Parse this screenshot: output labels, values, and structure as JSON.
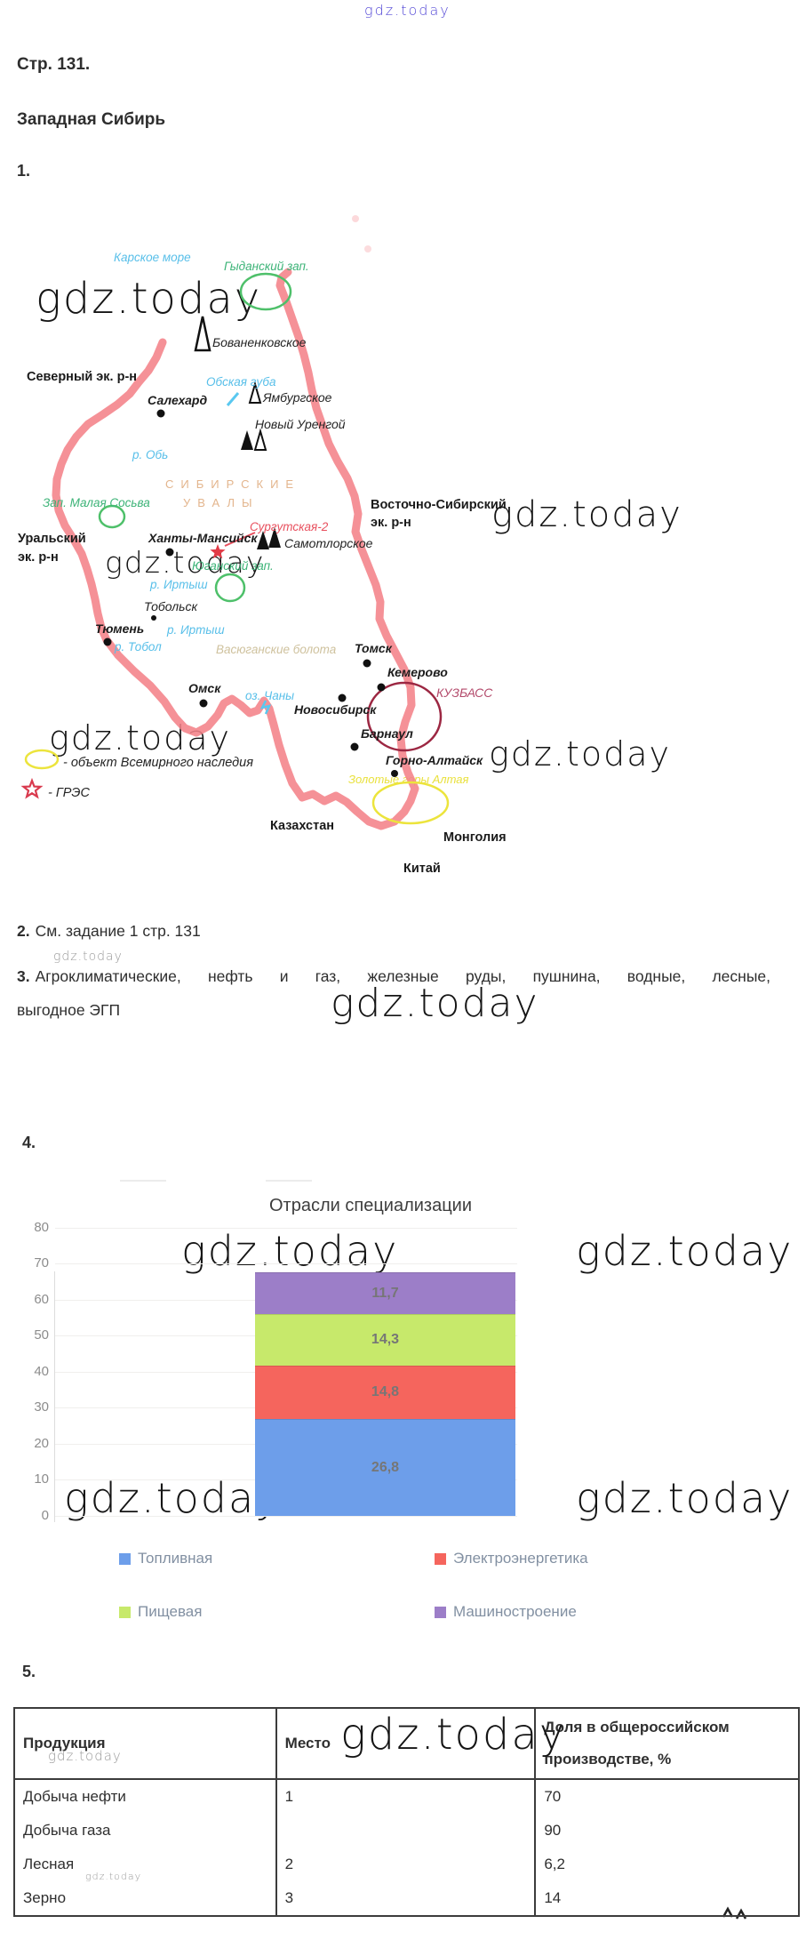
{
  "watermark": {
    "text": "gdz.today"
  },
  "page": {
    "heading": "Стр. 131.",
    "subheading": "Западная Сибирь"
  },
  "sections": {
    "s1": "1.",
    "s2": "2.",
    "s3": "3.",
    "s4": "4.",
    "s5": "5."
  },
  "answers": {
    "a2": "См. задание 1 стр. 131",
    "a3_line1": "Агроклиматические, нефть и газ, железные руды, пушнина, водные, лесные,",
    "a3_line2": "выгодное ЭГП"
  },
  "map": {
    "sea": "Карское море",
    "gydansky": "Гыданский зап.",
    "bovanenkovskoe": "Бованенковское",
    "severny": "Северный эк. р-н",
    "obskaya": "Обская губа",
    "salekhard": "Салехард",
    "yamburgskoe": "Ямбургское",
    "novy_urengoy": "Новый Уренгой",
    "r_ob": "р. Обь",
    "sibirskie": "СИБИРСКИЕ",
    "uvaly": "УВАЛЫ",
    "malaya_sosva": "Зап. Малая Сосьва",
    "vostochno_1": "Восточно-Сибирский",
    "vostochno_2": "эк. р-н",
    "uralsky_1": "Уральский",
    "uralsky_2": "эк. р-н",
    "khanty": "Ханты-Мансийск",
    "surgutskaya": "Сургутская-2",
    "samotlorskoe": "Самотлорское",
    "yugansky": "Юганский зап.",
    "irtysh1": "р. Иртыш",
    "tobolsk": "Тобольск",
    "tyumen": "Тюмень",
    "irtysh2": "р. Иртыш",
    "tobol": "р. Тобол",
    "vasyugan": "Васюганские болота",
    "tomsk": "Томск",
    "omsk": "Омск",
    "chany": "оз. Чаны",
    "kemerovo": "Кемерово",
    "kuzbass": "КУЗБАСС",
    "novosibirsk": "Новосибирск",
    "barnaul": "Барнаул",
    "gorno": "Горно-Алтайск",
    "altai_gold": "Золотые горы Алтая",
    "kazakhstan": "Казахстан",
    "mongolia": "Монголия",
    "china": "Китай",
    "legend_heritage": "- объект Всемирного наследия",
    "legend_gres": "- ГРЭС",
    "colors": {
      "border": "#f48289",
      "reserve_circle": "#4ec06a",
      "heritage_ellipse": "#ece43c",
      "kuzbass_circle": "#9c2742",
      "star": "#e23b47"
    }
  },
  "chart_data": {
    "type": "bar",
    "stacked": true,
    "title": "Отрасли специализации",
    "categories": [
      ""
    ],
    "series": [
      {
        "key": "toplivnaya",
        "name": "Топливная",
        "values": [
          26.8
        ],
        "label": "26,8",
        "color": "#6d9eea"
      },
      {
        "key": "elektroenergetika",
        "name": "Электроэнергетика",
        "values": [
          14.8
        ],
        "label": "14,8",
        "color": "#f5655d"
      },
      {
        "key": "pishchevaya",
        "name": "Пищевая",
        "values": [
          14.3
        ],
        "label": "14,3",
        "color": "#c7e96b"
      },
      {
        "key": "mashinostroenie",
        "name": "Машиностроение",
        "values": [
          11.7
        ],
        "label": "11,7",
        "color": "#9c7ec8"
      }
    ],
    "ylim": [
      0,
      80
    ],
    "ytick_step": 10,
    "grid": true,
    "legend_position": "bottom"
  },
  "table": {
    "headers": [
      "Продукция",
      "Место",
      "Доля в общероссийском производстве, %"
    ],
    "rows": [
      {
        "product": "Добыча нефти",
        "place": "1",
        "share": "70"
      },
      {
        "product": "Добыча газа",
        "place": "",
        "share": "90"
      },
      {
        "product": "Лесная",
        "place": "2",
        "share": "6,2"
      },
      {
        "product": "Зерно",
        "place": "3",
        "share": "14"
      }
    ]
  }
}
